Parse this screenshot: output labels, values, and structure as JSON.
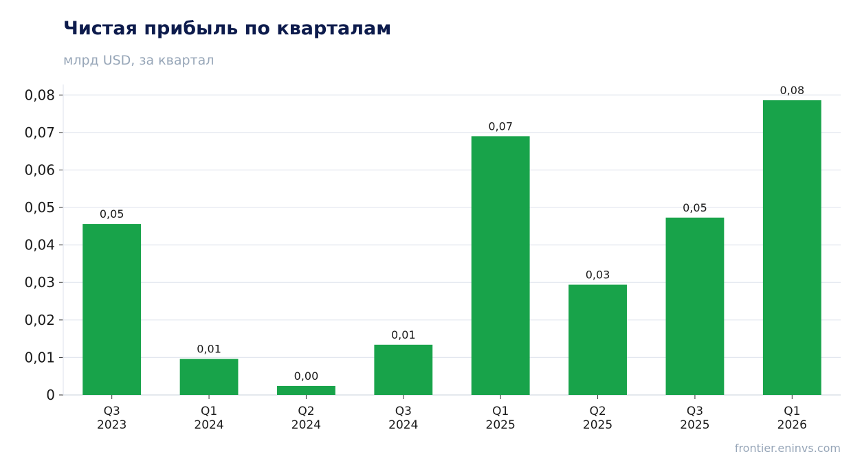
{
  "chart_data": {
    "type": "bar",
    "title": "Чистая прибыль по кварталам",
    "subtitle": "млрд USD, за квартал",
    "categories": [
      [
        "Q3",
        "2023"
      ],
      [
        "Q1",
        "2024"
      ],
      [
        "Q2",
        "2024"
      ],
      [
        "Q3",
        "2024"
      ],
      [
        "Q1",
        "2025"
      ],
      [
        "Q2",
        "2025"
      ],
      [
        "Q3",
        "2025"
      ],
      [
        "Q1",
        "2026"
      ]
    ],
    "values": [
      0.0456,
      0.0096,
      0.0024,
      0.0134,
      0.069,
      0.0294,
      0.0473,
      0.0786
    ],
    "data_labels": [
      "0,05",
      "0,01",
      "0,00",
      "0,01",
      "0,07",
      "0,03",
      "0,05",
      "0,08"
    ],
    "y_ticks": [
      0,
      0.01,
      0.02,
      0.03,
      0.04,
      0.05,
      0.06,
      0.07,
      0.08
    ],
    "y_tick_labels": [
      "0",
      "0,01",
      "0,02",
      "0,03",
      "0,04",
      "0,05",
      "0,06",
      "0,07",
      "0,08"
    ],
    "ylim": [
      0,
      0.0828
    ],
    "xlabel": "",
    "ylabel": "",
    "grid": "horizontal",
    "legend": "none",
    "bar_color": "#18a34a"
  },
  "footer": {
    "source": "frontier.eninvs.com"
  },
  "colors": {
    "title": "#0d1b4c",
    "subtitle": "#97a6b8",
    "grid": "#e3e7ef",
    "axis_text": "#1a1a1a"
  }
}
